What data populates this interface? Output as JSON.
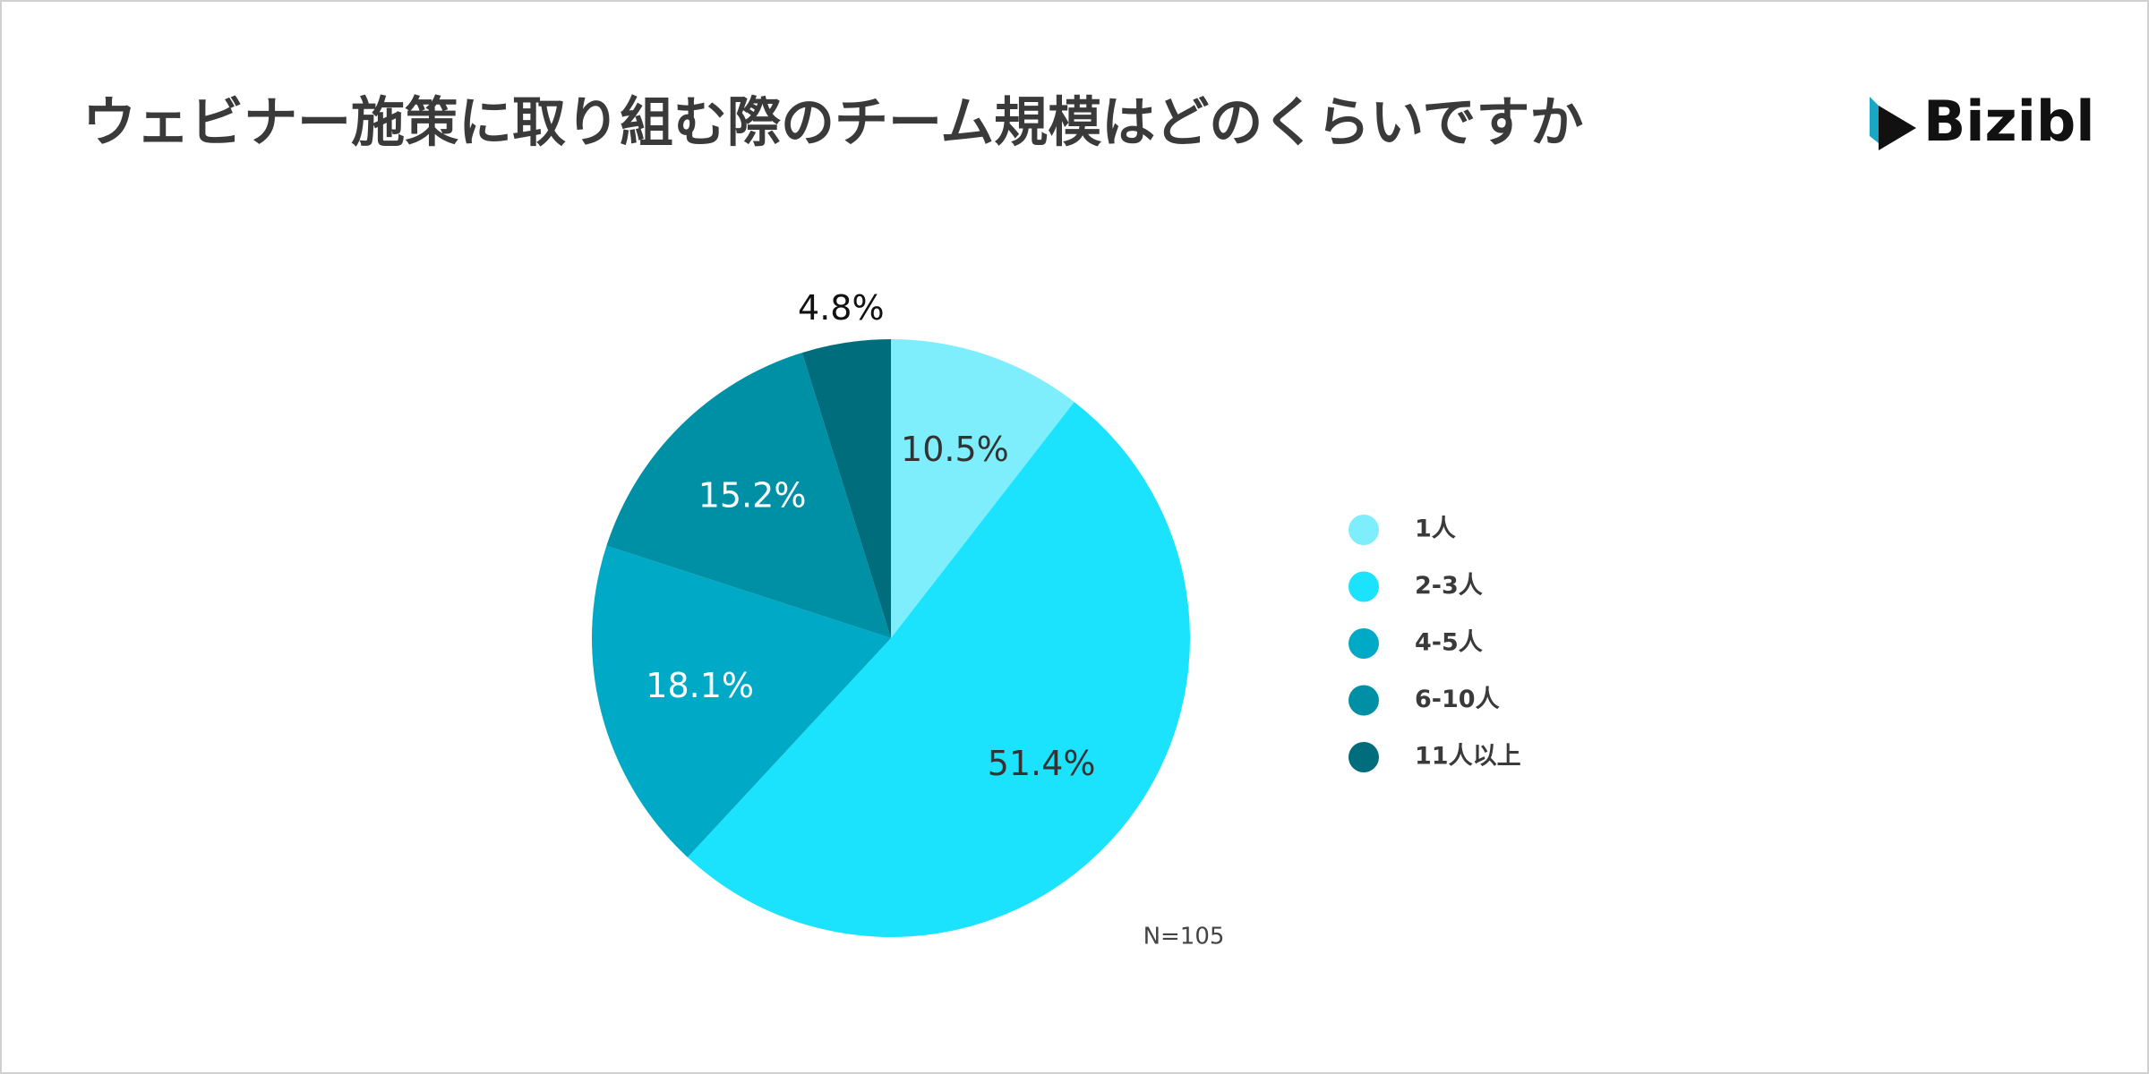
{
  "chart_data": {
    "type": "pie",
    "title": "ウェビナー施策に取り組む際のチーム規模はどのくらいですか",
    "logo": "Bizibl",
    "categories": [
      "1人",
      "2-3人",
      "4-5人",
      "6-10人",
      "11人以上"
    ],
    "values": [
      10.5,
      51.4,
      18.1,
      15.2,
      4.8
    ],
    "value_labels": [
      "10.5%",
      "51.4%",
      "18.1%",
      "15.2%",
      "4.8%"
    ],
    "colors": [
      "#7eeefc",
      "#1be3fd",
      "#00a9c5",
      "#0090a6",
      "#006d7d"
    ],
    "annotation": "N=105",
    "legend": "right"
  }
}
